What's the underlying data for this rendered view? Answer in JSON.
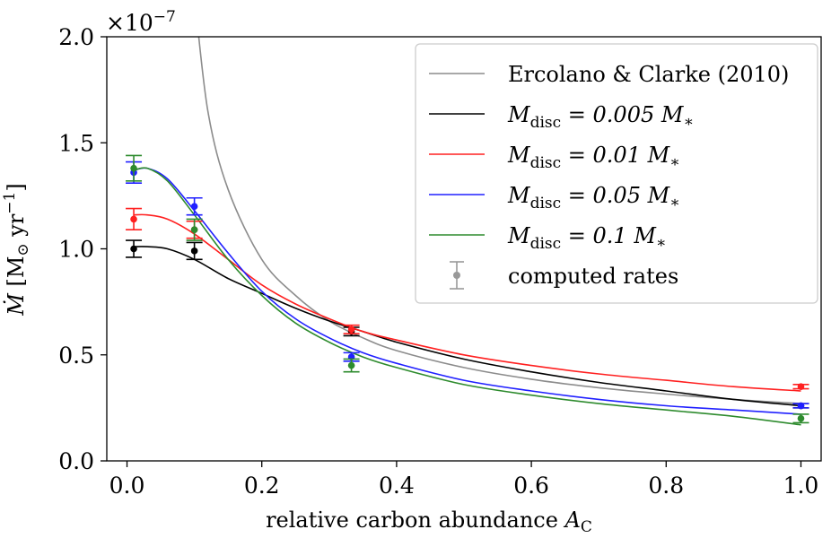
{
  "chart_data": {
    "type": "line",
    "xlabel": "relative carbon abundance ",
    "xlabel_symbol": "A",
    "xlabel_sub": "C",
    "ylabel_symbol": "Ṁ",
    "ylabel_unit": " [M",
    "ylabel_sun": "⊙",
    "ylabel_yr": " yr",
    "ylabel_exp": "−1",
    "ylabel_close": "]",
    "y_multiplier_base": "×10",
    "y_multiplier_exp": "−7",
    "xlim": [
      -0.03,
      1.03
    ],
    "ylim": [
      0.0,
      2.0
    ],
    "x_ticks": [
      "0.0",
      "0.2",
      "0.4",
      "0.6",
      "0.8",
      "1.0"
    ],
    "y_ticks": [
      "0.0",
      "0.5",
      "1.0",
      "1.5",
      "2.0"
    ],
    "grid": false,
    "legend_position": "top-right",
    "series": [
      {
        "name": "Ercolano & Clarke (2010)",
        "color": "#8c8c8c",
        "x": [
          0.1,
          0.12,
          0.15,
          0.2,
          0.25,
          0.3,
          0.35,
          0.4,
          0.5,
          0.6,
          0.7,
          0.8,
          0.9,
          1.0
        ],
        "y": [
          2.2,
          1.65,
          1.28,
          0.95,
          0.78,
          0.66,
          0.58,
          0.52,
          0.44,
          0.385,
          0.345,
          0.315,
          0.29,
          0.27
        ]
      },
      {
        "name_prefix": "M",
        "name_sub": "disc",
        "name_suffix": " = 0.005 M",
        "name_star": "∗",
        "color": "#000000",
        "x": [
          0.01,
          0.03,
          0.06,
          0.1,
          0.15,
          0.2,
          0.25,
          0.3,
          0.35,
          0.4,
          0.5,
          0.6,
          0.7,
          0.8,
          0.9,
          1.0
        ],
        "y": [
          1.01,
          1.01,
          1.0,
          0.95,
          0.86,
          0.79,
          0.72,
          0.66,
          0.61,
          0.56,
          0.48,
          0.42,
          0.37,
          0.33,
          0.29,
          0.26
        ],
        "points": [
          {
            "x": 0.01,
            "y": 1.0,
            "err": 0.04
          },
          {
            "x": 0.1,
            "y": 0.99,
            "err": 0.04
          },
          {
            "x": 0.333,
            "y": 0.61,
            "err": 0.02
          },
          {
            "x": 1.0,
            "y": 0.26,
            "err": 0.01
          }
        ]
      },
      {
        "name_prefix": "M",
        "name_sub": "disc",
        "name_suffix": " = 0.01 M",
        "name_star": "∗",
        "color": "#ff2020",
        "x": [
          0.01,
          0.03,
          0.06,
          0.1,
          0.15,
          0.2,
          0.25,
          0.3,
          0.35,
          0.4,
          0.5,
          0.6,
          0.7,
          0.8,
          0.9,
          1.0
        ],
        "y": [
          1.16,
          1.16,
          1.14,
          1.07,
          0.95,
          0.83,
          0.74,
          0.67,
          0.61,
          0.57,
          0.5,
          0.45,
          0.41,
          0.38,
          0.35,
          0.33
        ],
        "points": [
          {
            "x": 0.01,
            "y": 1.14,
            "err": 0.05
          },
          {
            "x": 0.1,
            "y": 1.09,
            "err": 0.04
          },
          {
            "x": 0.333,
            "y": 0.62,
            "err": 0.02
          },
          {
            "x": 1.0,
            "y": 0.35,
            "err": 0.01
          }
        ]
      },
      {
        "name_prefix": "M",
        "name_sub": "disc",
        "name_suffix": " = 0.05 M",
        "name_star": "∗",
        "color": "#2020ff",
        "x": [
          0.01,
          0.03,
          0.06,
          0.1,
          0.15,
          0.2,
          0.25,
          0.3,
          0.35,
          0.4,
          0.5,
          0.6,
          0.7,
          0.8,
          0.9,
          1.0
        ],
        "y": [
          1.37,
          1.38,
          1.33,
          1.18,
          0.98,
          0.8,
          0.67,
          0.58,
          0.51,
          0.46,
          0.38,
          0.33,
          0.29,
          0.26,
          0.24,
          0.22
        ],
        "points": [
          {
            "x": 0.01,
            "y": 1.36,
            "err": 0.05
          },
          {
            "x": 0.1,
            "y": 1.2,
            "err": 0.04
          },
          {
            "x": 0.333,
            "y": 0.49,
            "err": 0.02
          },
          {
            "x": 1.0,
            "y": 0.26,
            "err": 0.01
          }
        ]
      },
      {
        "name_prefix": "M",
        "name_sub": "disc",
        "name_suffix": " = 0.1 M",
        "name_star": "∗",
        "color": "#2e8b2e",
        "x": [
          0.01,
          0.03,
          0.06,
          0.1,
          0.15,
          0.2,
          0.25,
          0.3,
          0.35,
          0.4,
          0.5,
          0.6,
          0.7,
          0.8,
          0.9,
          1.0
        ],
        "y": [
          1.37,
          1.38,
          1.32,
          1.16,
          0.95,
          0.78,
          0.65,
          0.56,
          0.49,
          0.44,
          0.36,
          0.31,
          0.27,
          0.24,
          0.21,
          0.17
        ],
        "points": [
          {
            "x": 0.01,
            "y": 1.38,
            "err": 0.06
          },
          {
            "x": 0.1,
            "y": 1.09,
            "err": 0.05
          },
          {
            "x": 0.333,
            "y": 0.45,
            "err": 0.03
          },
          {
            "x": 1.0,
            "y": 0.2,
            "err": 0.02
          }
        ]
      }
    ],
    "legend_marker_label": "computed rates"
  }
}
